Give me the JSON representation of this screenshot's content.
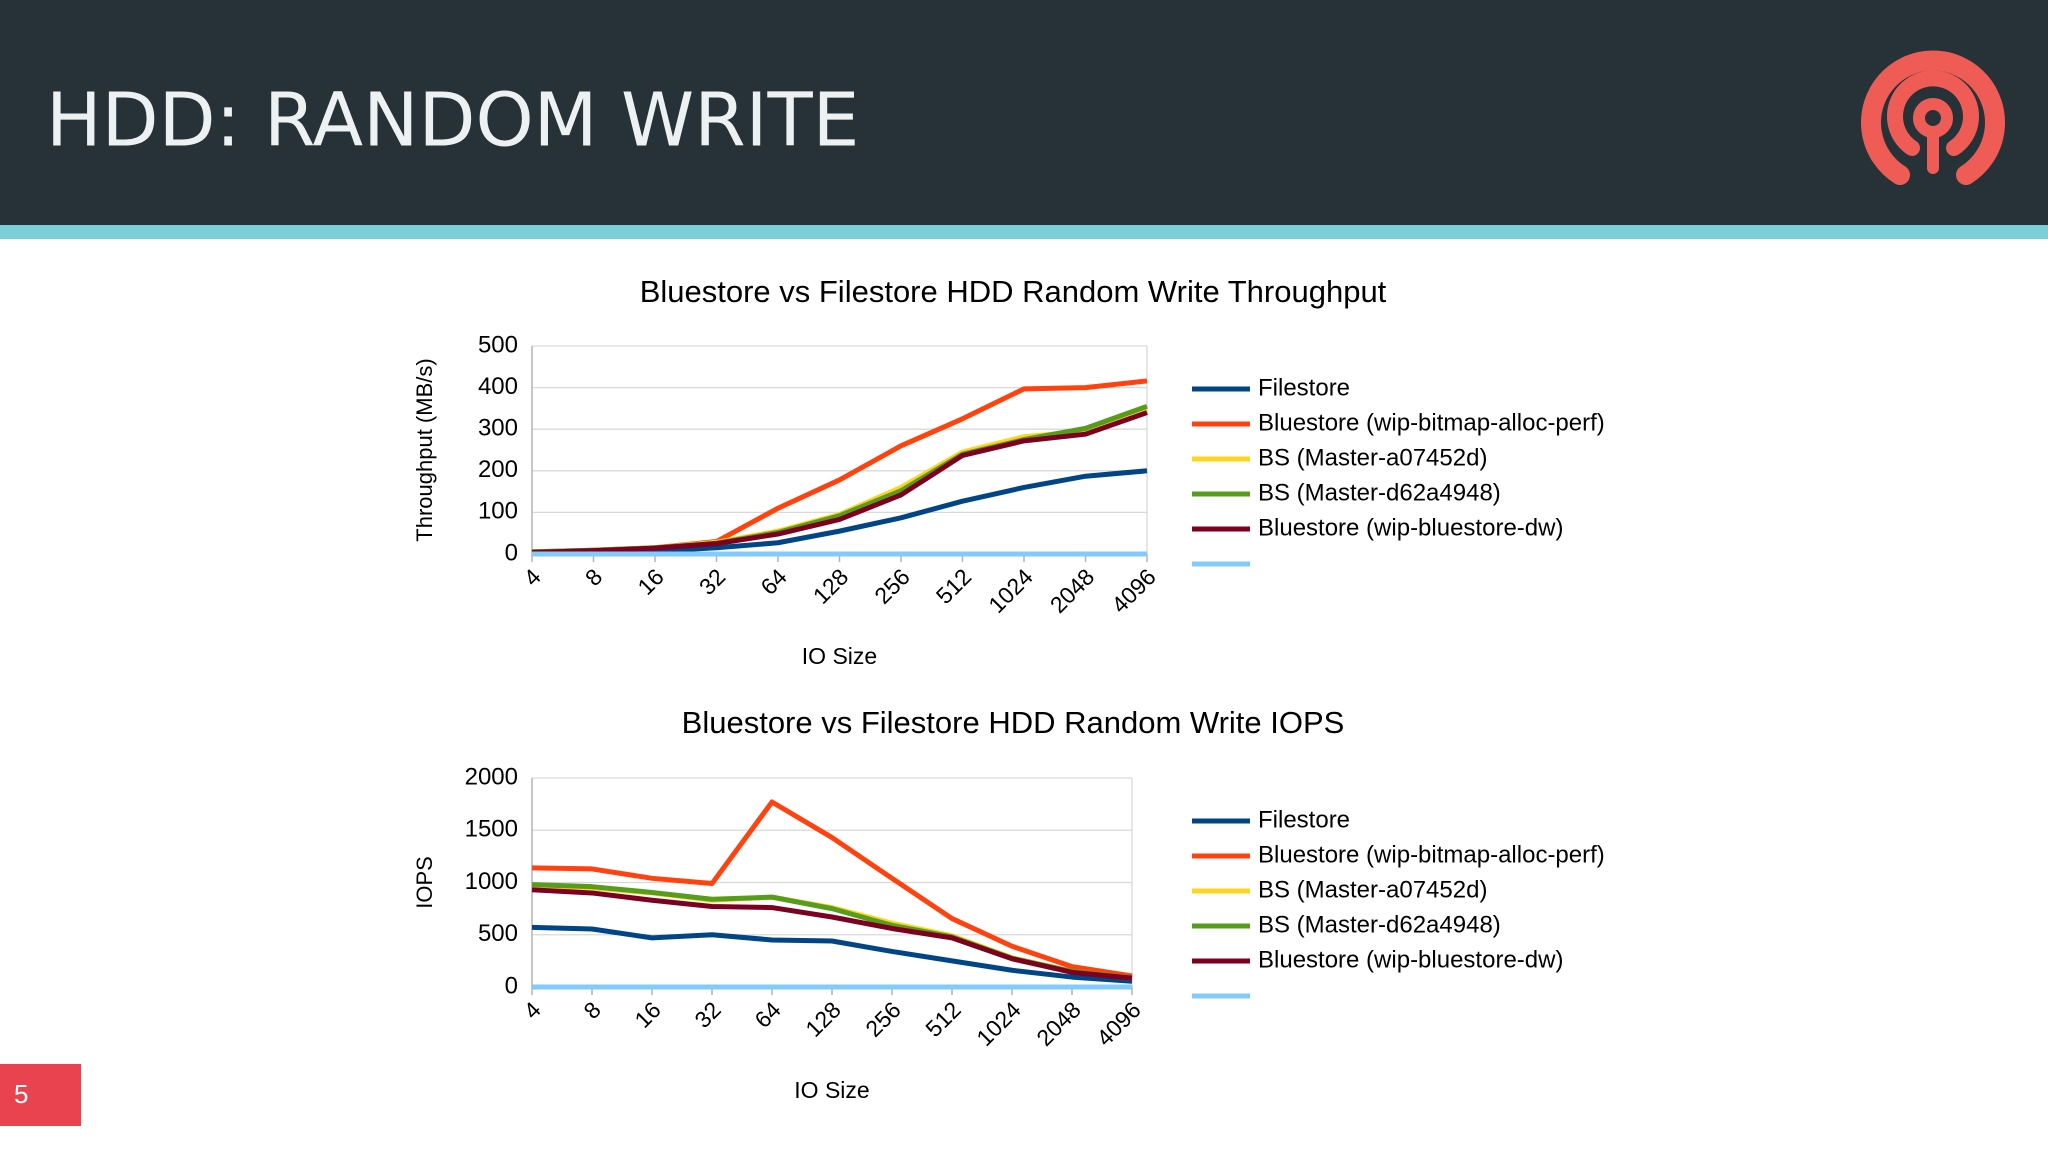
{
  "header": {
    "title": "HDD: RANDOM WRITE",
    "page_number": "5"
  },
  "chart_data": [
    {
      "type": "line",
      "title": "Bluestore vs Filestore HDD Random Write Throughput",
      "x_label": "IO Size",
      "y_label": "Throughput (MB/s)",
      "categories": [
        "4",
        "8",
        "16",
        "32",
        "64",
        "128",
        "256",
        "512",
        "1024",
        "2048",
        "4096"
      ],
      "ylim": [
        0,
        500
      ],
      "yticks": [
        0,
        100,
        200,
        300,
        400,
        500
      ],
      "grid": true,
      "series": [
        {
          "name": "Filestore",
          "color": "#004586",
          "values": [
            2,
            4,
            7,
            15,
            27,
            55,
            87,
            127,
            160,
            187,
            200
          ]
        },
        {
          "name": "Bluestore (wip-bitmap-alloc-perf)",
          "color": "#ff420e",
          "values": [
            5,
            9,
            15,
            30,
            110,
            178,
            260,
            325,
            397,
            400,
            416
          ]
        },
        {
          "name": "BS (Master-a07452d)",
          "color": "#ffd320",
          "values": [
            5,
            9,
            15,
            28,
            55,
            95,
            160,
            245,
            282,
            295,
            345
          ]
        },
        {
          "name": "BS (Master-d62a4948)",
          "color": "#579d1c",
          "values": [
            5,
            9,
            15,
            26,
            52,
            92,
            152,
            240,
            275,
            302,
            355
          ]
        },
        {
          "name": "Bluestore (wip-bluestore-dw)",
          "color": "#7e0021",
          "values": [
            4,
            8,
            14,
            25,
            48,
            83,
            142,
            237,
            272,
            288,
            340
          ]
        },
        {
          "color": "#83caff",
          "values": [
            0,
            0,
            0,
            0,
            0,
            0,
            0,
            0,
            0,
            0,
            0
          ]
        }
      ]
    },
    {
      "type": "line",
      "title": "Bluestore vs Filestore HDD Random Write IOPS",
      "x_label": "IO Size",
      "y_label": "IOPS",
      "categories": [
        "4",
        "8",
        "16",
        "32",
        "64",
        "128",
        "256",
        "512",
        "1024",
        "2048",
        "4096"
      ],
      "ylim": [
        0,
        2000
      ],
      "yticks": [
        0,
        500,
        1000,
        1500,
        2000
      ],
      "grid": true,
      "series": [
        {
          "name": "Filestore",
          "color": "#004586",
          "values": [
            570,
            555,
            470,
            500,
            450,
            440,
            340,
            250,
            160,
            95,
            55
          ]
        },
        {
          "name": "Bluestore (wip-bitmap-alloc-perf)",
          "color": "#ff420e",
          "values": [
            1140,
            1130,
            1040,
            990,
            1770,
            1430,
            1040,
            655,
            390,
            195,
            105
          ]
        },
        {
          "name": "BS (Master-a07452d)",
          "color": "#ffd320",
          "values": [
            970,
            950,
            900,
            830,
            860,
            760,
            610,
            490,
            280,
            150,
            85
          ]
        },
        {
          "name": "BS (Master-d62a4948)",
          "color": "#579d1c",
          "values": [
            980,
            960,
            905,
            840,
            860,
            750,
            590,
            480,
            275,
            150,
            88
          ]
        },
        {
          "name": "Bluestore (wip-bluestore-dw)",
          "color": "#7e0021",
          "values": [
            930,
            900,
            830,
            770,
            760,
            670,
            560,
            470,
            270,
            140,
            85
          ]
        },
        {
          "color": "#83caff",
          "values": [
            0,
            0,
            0,
            0,
            0,
            0,
            0,
            0,
            0,
            0,
            0
          ]
        }
      ]
    }
  ]
}
